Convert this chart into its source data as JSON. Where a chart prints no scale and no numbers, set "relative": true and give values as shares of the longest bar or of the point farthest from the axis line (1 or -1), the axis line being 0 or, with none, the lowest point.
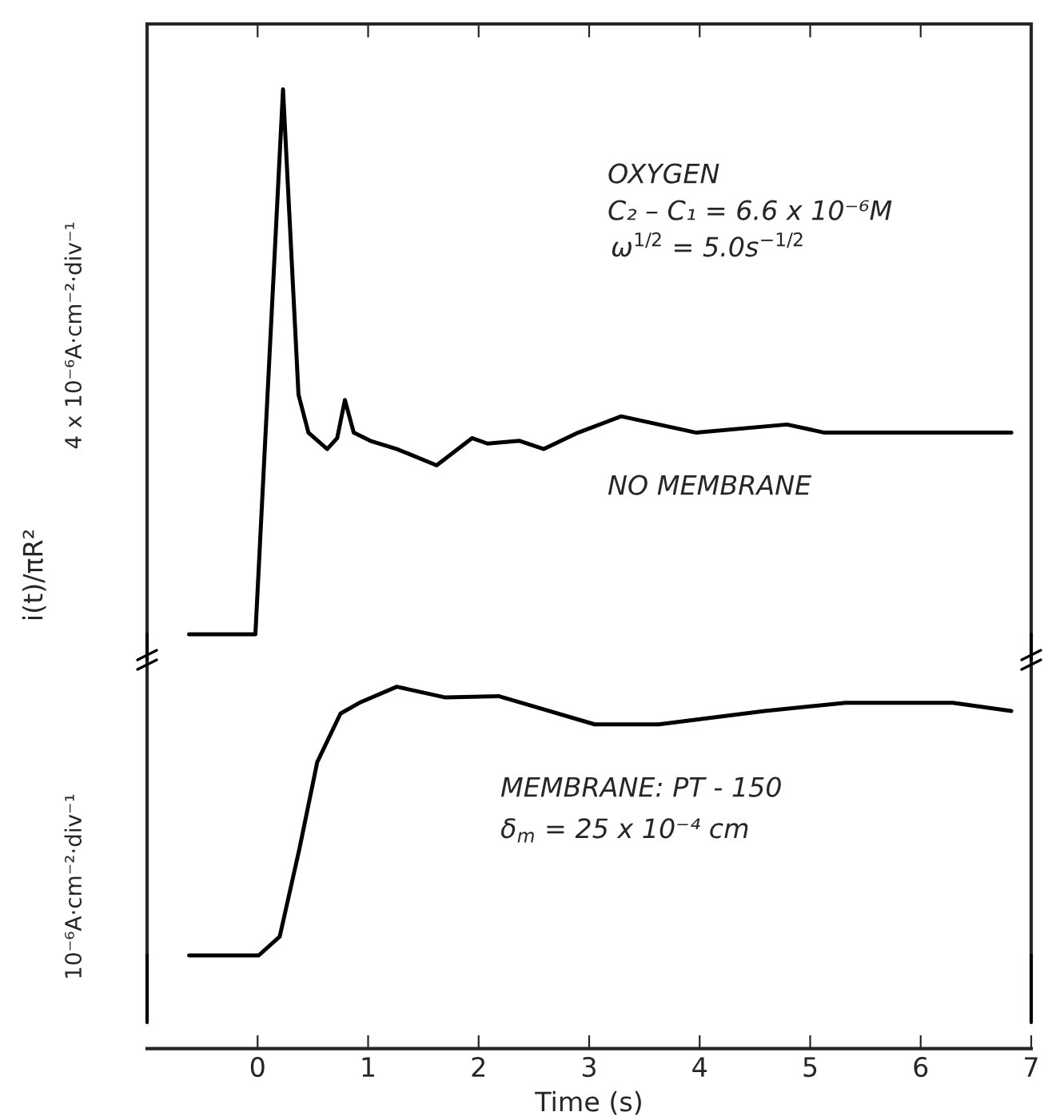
{
  "chart_data": [
    {
      "type": "line",
      "relative": true,
      "ylabel": "4 x 10⁻⁶A·cm⁻²·div⁻¹",
      "xlim": [
        -1,
        7
      ],
      "xticks": [
        0,
        1,
        2,
        3,
        4,
        5,
        6,
        7
      ],
      "tick_labels": false,
      "grid": false,
      "legend": false,
      "marker": "none",
      "line_style": "solid",
      "annotations": [
        "OXYGEN",
        "C₂ – C₁ = 6.6 x 10⁻⁶M",
        "ω$^{1/2}$ = 5.0s$^{−1/2}$",
        "NO MEMBRANE",
        "i(t)/πR²"
      ],
      "series": [
        {
          "color": "#000000",
          "x": [
            -0.62,
            -0.02,
            0.23,
            0.37,
            0.46,
            0.63,
            0.72,
            0.79,
            0.87,
            1.02,
            1.26,
            1.62,
            1.94,
            2.08,
            2.37,
            2.59,
            2.9,
            3.29,
            3.97,
            4.79,
            5.13,
            6.82
          ],
          "values": [
            0,
            0,
            1.0,
            0.44,
            0.37,
            0.34,
            0.36,
            0.43,
            0.37,
            0.355,
            0.34,
            0.31,
            0.36,
            0.35,
            0.355,
            0.34,
            0.37,
            0.4,
            0.37,
            0.385,
            0.37,
            0.37
          ]
        }
      ]
    },
    {
      "type": "line",
      "relative": true,
      "ylabel": "10⁻⁶A·cm⁻²·div⁻¹",
      "xlabel": "Time (s)",
      "xlim": [
        -1,
        7
      ],
      "xticks": [
        0,
        1,
        2,
        3,
        4,
        5,
        6,
        7
      ],
      "grid": false,
      "legend": false,
      "marker": "none",
      "line_style": "solid",
      "annotations": [
        "MEMBRANE: PT - 150",
        "δ$_{m}$ = 25 x 10⁻⁴ cm"
      ],
      "series": [
        {
          "color": "#000000",
          "x": [
            -0.62,
            -0.03,
            0.01,
            0.2,
            0.38,
            0.54,
            0.75,
            0.92,
            1.26,
            1.7,
            2.18,
            2.47,
            3.05,
            3.63,
            4.59,
            5.32,
            6.29,
            6.82
          ],
          "values": [
            0,
            0,
            0,
            0.07,
            0.4,
            0.72,
            0.9,
            0.94,
            1.0,
            0.96,
            0.965,
            0.93,
            0.86,
            0.86,
            0.91,
            0.94,
            0.94,
            0.91
          ]
        }
      ]
    }
  ]
}
